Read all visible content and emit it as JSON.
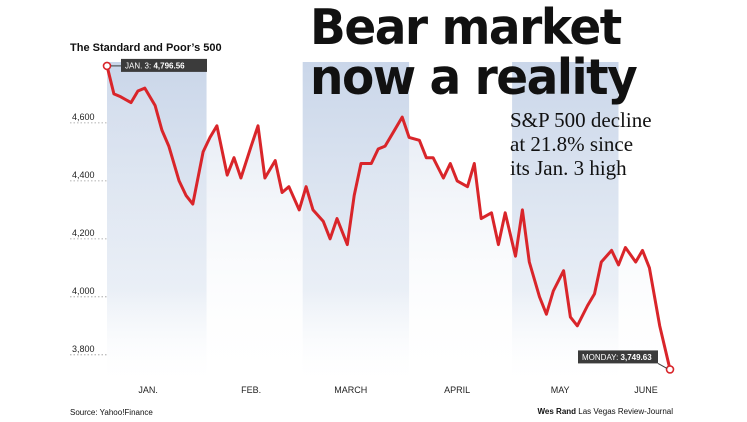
{
  "headline": {
    "line1": "Bear market",
    "line2": "now a reality"
  },
  "subhead": {
    "line1": "S&P 500 decline",
    "line2": "at 21.8% since",
    "line3": "its Jan. 3 high"
  },
  "footer": {
    "source": "Source: Yahoo!Finance",
    "credit_name": "Wes Rand",
    "credit_org": "Las Vegas Review-Journal"
  },
  "colors": {
    "line": "#d9252a",
    "label_bg": "#3b3b3b",
    "band_top": "#c7d4e8"
  },
  "chart_data": {
    "type": "line",
    "title": "The Standard and Poor’s 500",
    "xlabel": "",
    "ylabel": "",
    "ylim": [
      3720,
      4810
    ],
    "yticks": [
      3800,
      4000,
      4200,
      4400,
      4600
    ],
    "ytick_labels": [
      "3,800",
      "4,000",
      "4,200",
      "4,400",
      "4,600"
    ],
    "xticks": [
      "JAN.",
      "FEB.",
      "MARCH",
      "APRIL",
      "MAY",
      "JUNE"
    ],
    "grid": "horizontal",
    "x_range": [
      "2022-01-03",
      "2022-06-16"
    ],
    "annotations": [
      {
        "date": "2022-01-03",
        "prefix": "JAN. 3:",
        "value_text": "4,796.56",
        "value": 4796.56
      },
      {
        "date": "2022-06-16",
        "prefix": "MONDAY:",
        "value_text": "3,749.63",
        "value": 3749.63
      }
    ],
    "series": [
      {
        "name": "",
        "x": [
          "2022-01-03",
          "2022-01-05",
          "2022-01-07",
          "2022-01-10",
          "2022-01-12",
          "2022-01-14",
          "2022-01-17",
          "2022-01-19",
          "2022-01-21",
          "2022-01-24",
          "2022-01-26",
          "2022-01-28",
          "2022-01-31",
          "2022-02-02",
          "2022-02-04",
          "2022-02-07",
          "2022-02-09",
          "2022-02-11",
          "2022-02-14",
          "2022-02-16",
          "2022-02-18",
          "2022-02-21",
          "2022-02-23",
          "2022-02-25",
          "2022-02-28",
          "2022-03-02",
          "2022-03-04",
          "2022-03-07",
          "2022-03-09",
          "2022-03-11",
          "2022-03-14",
          "2022-03-16",
          "2022-03-18",
          "2022-03-21",
          "2022-03-23",
          "2022-03-25",
          "2022-03-28",
          "2022-03-30",
          "2022-04-01",
          "2022-04-04",
          "2022-04-06",
          "2022-04-08",
          "2022-04-11",
          "2022-04-13",
          "2022-04-15",
          "2022-04-18",
          "2022-04-20",
          "2022-04-22",
          "2022-04-25",
          "2022-04-27",
          "2022-04-29",
          "2022-05-02",
          "2022-05-04",
          "2022-05-06",
          "2022-05-09",
          "2022-05-11",
          "2022-05-13",
          "2022-05-16",
          "2022-05-18",
          "2022-05-20",
          "2022-05-23",
          "2022-05-25",
          "2022-05-27",
          "2022-05-30",
          "2022-06-01",
          "2022-06-03",
          "2022-06-06",
          "2022-06-08",
          "2022-06-10",
          "2022-06-13",
          "2022-06-16"
        ],
        "values": [
          4796.56,
          4700,
          4690,
          4670,
          4710,
          4720,
          4660,
          4575,
          4520,
          4400,
          4350,
          4320,
          4500,
          4550,
          4590,
          4420,
          4480,
          4410,
          4520,
          4590,
          4410,
          4470,
          4360,
          4380,
          4300,
          4380,
          4300,
          4260,
          4200,
          4270,
          4180,
          4350,
          4460,
          4460,
          4510,
          4520,
          4580,
          4620,
          4550,
          4540,
          4480,
          4480,
          4410,
          4460,
          4400,
          4380,
          4460,
          4270,
          4290,
          4180,
          4290,
          4140,
          4300,
          4120,
          4000,
          3940,
          4020,
          4090,
          3930,
          3900,
          3970,
          4010,
          4120,
          4160,
          4110,
          4170,
          4120,
          4160,
          4100,
          3900,
          3749.63
        ]
      }
    ]
  }
}
